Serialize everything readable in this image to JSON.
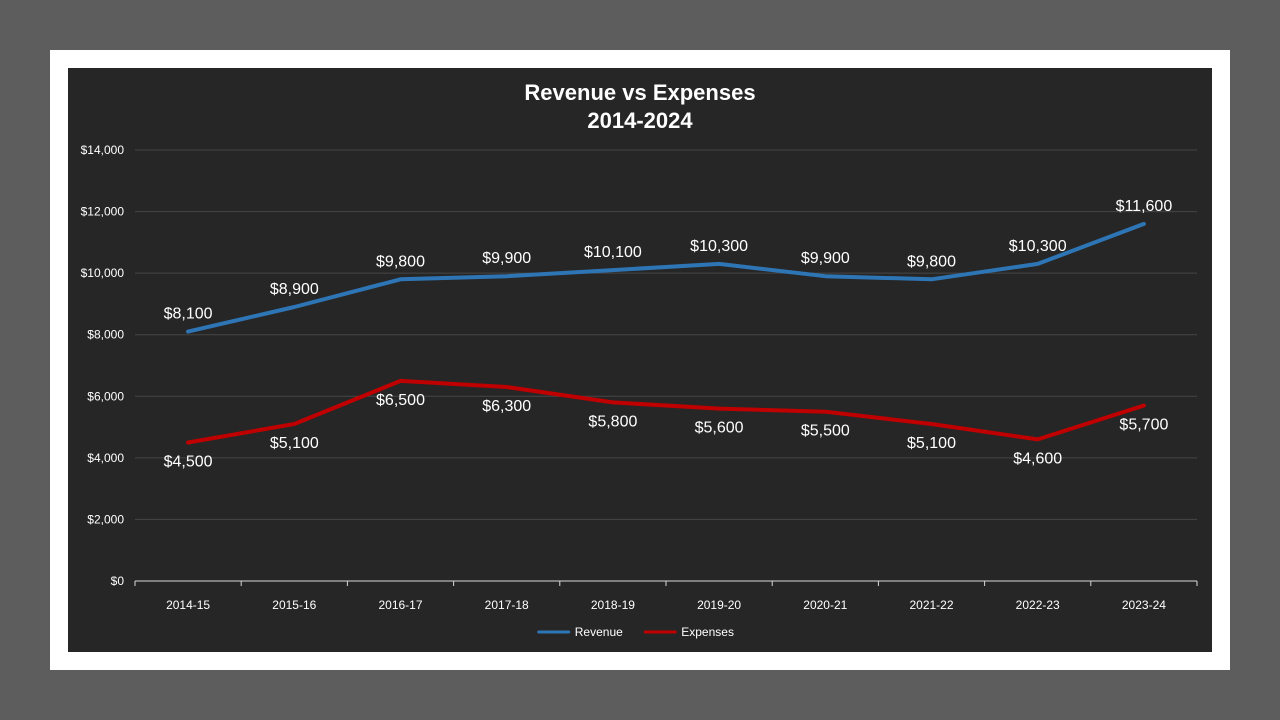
{
  "chart_data": {
    "type": "line",
    "title": "Revenue vs Expenses",
    "subtitle": "2014-2024",
    "xlabel": "",
    "ylabel": "",
    "categories": [
      "2014-15",
      "2015-16",
      "2016-17",
      "2017-18",
      "2018-19",
      "2019-20",
      "2020-21",
      "2021-22",
      "2022-23",
      "2023-24"
    ],
    "y_ticks": [
      "$0",
      "$2,000",
      "$4,000",
      "$6,000",
      "$8,000",
      "$10,000",
      "$12,000",
      "$14,000"
    ],
    "ylim": [
      0,
      14000
    ],
    "grid": true,
    "legend_position": "bottom",
    "series": [
      {
        "name": "Revenue",
        "color": "#2e75b6",
        "label_position": "above",
        "values": [
          8100,
          8900,
          9800,
          9900,
          10100,
          10300,
          9900,
          9800,
          10300,
          11600
        ],
        "labels": [
          "$8,100",
          "$8,900",
          "$9,800",
          "$9,900",
          "$10,100",
          "$10,300",
          "$9,900",
          "$9,800",
          "$10,300",
          "$11,600"
        ]
      },
      {
        "name": "Expenses",
        "color": "#c00000",
        "label_position": "below",
        "values": [
          4500,
          5100,
          6500,
          6300,
          5800,
          5600,
          5500,
          5100,
          4600,
          5700
        ],
        "labels": [
          "$4,500",
          "$5,100",
          "$6,500",
          "$6,300",
          "$5,800",
          "$5,600",
          "$5,500",
          "$5,100",
          "$4,600",
          "$5,700"
        ]
      }
    ]
  }
}
